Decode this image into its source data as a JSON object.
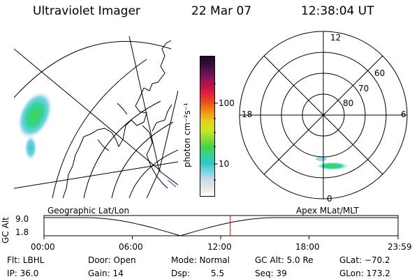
{
  "header": {
    "instrument": "Ultraviolet Imager",
    "date": "22 Mar 07",
    "time": "12:38:04 UT"
  },
  "colorbar": {
    "unit_label": "photon cm⁻²s⁻¹",
    "ticks": [
      "100",
      "10"
    ],
    "colors": [
      "#ffffff",
      "#e6e6e6",
      "#c8dcf0",
      "#78d2e6",
      "#32c8c8",
      "#32d296",
      "#46d250",
      "#8cdc32",
      "#c8e628",
      "#e6d21e",
      "#f0a014",
      "#f06414",
      "#e63232",
      "#d21446",
      "#a01450",
      "#641450",
      "#3c0a3c",
      "#1e0a28"
    ]
  },
  "polar_plot": {
    "mlt_labels": {
      "top": "12",
      "left": "18",
      "right": "6",
      "bottom": "0"
    },
    "lat_labels": [
      "60",
      "70",
      "80"
    ]
  },
  "timeline": {
    "left_title": "Geographic Lat/Lon",
    "right_title": "Apex MLat/MLT",
    "axis_label": "GC Alt",
    "alt_top": "9.0",
    "alt_bottom": "1.8",
    "time_ticks": [
      "00:00",
      "06:00",
      "12:00",
      "18:00",
      "23:59"
    ],
    "current_time_marker_hours": 12.63
  },
  "info": {
    "flt": "Flt: LBHL",
    "ip": "IP: 36.0",
    "door": "Door: Open",
    "gain": "Gain: 14",
    "mode": "Mode: Normal",
    "dsp_label": "Dsp:",
    "dsp_value": "5.5",
    "gc_alt": "GC Alt: 5.0 Re",
    "seq": "Seq: 39",
    "glat": "GLat: −70.2",
    "glon": "GLon: 173.2"
  }
}
